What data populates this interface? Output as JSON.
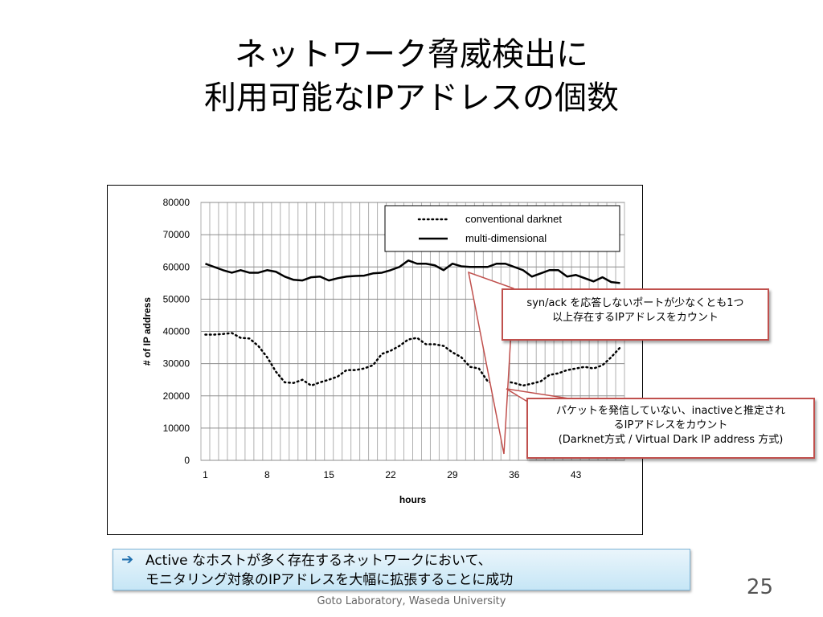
{
  "slide": {
    "title_line1": "ネットワーク脅威検出に",
    "title_line2": "利用可能なIPアドレスの個数",
    "callout_top": [
      "syn/ack を応答しないポートが少なくとも1つ",
      "以上存在するIPアドレスをカウント"
    ],
    "callout_bottom": [
      "パケットを発信していない、inactiveと推定され",
      "るIPアドレスをカウント",
      "(Darknet方式 / Virtual Dark IP address 方式)"
    ],
    "note": [
      "Active なホストが多く存在するネットワークにおいて、",
      "モニタリング対象のIPアドレスを大幅に拡張することに成功"
    ],
    "page_number": "25",
    "footer": "Goto Laboratory, Waseda University",
    "colors": {
      "callout_border": "#c0504d",
      "note_bg": "#c6e6f6",
      "arrow": "#1f6fae"
    }
  },
  "chart_data": {
    "type": "line",
    "xlabel": "hours",
    "ylabel": "# of IP address",
    "ylim": [
      0,
      80000
    ],
    "yticks": [
      0,
      10000,
      20000,
      30000,
      40000,
      50000,
      60000,
      70000,
      80000
    ],
    "xticks": [
      1,
      8,
      15,
      22,
      29,
      36,
      43
    ],
    "x": [
      1,
      2,
      3,
      4,
      5,
      6,
      7,
      8,
      9,
      10,
      11,
      12,
      13,
      14,
      15,
      16,
      17,
      18,
      19,
      20,
      21,
      22,
      23,
      24,
      25,
      26,
      27,
      28,
      29,
      30,
      31,
      32,
      33,
      34,
      35,
      36,
      37,
      38,
      39,
      40,
      41,
      42,
      43,
      44,
      45,
      46,
      47,
      48
    ],
    "grid": true,
    "legend_position": "top-right",
    "series": [
      {
        "name": "conventional darknet",
        "style": "dotted",
        "values": [
          39000,
          39000,
          39200,
          39500,
          38000,
          37800,
          35500,
          32000,
          27500,
          24200,
          24000,
          25000,
          23200,
          24200,
          25000,
          26000,
          28000,
          28000,
          28500,
          29500,
          33000,
          34000,
          35500,
          37500,
          38000,
          36000,
          36000,
          35500,
          33500,
          32000,
          29000,
          28500,
          24500,
          23500,
          24500,
          24000,
          23200,
          23800,
          24500,
          26500,
          27000,
          28000,
          28500,
          29000,
          28500,
          29500,
          32000,
          35000
        ]
      },
      {
        "name": "multi-dimensional",
        "style": "solid",
        "values": [
          61000,
          60000,
          59000,
          58200,
          59000,
          58200,
          58200,
          59000,
          58500,
          57000,
          56000,
          55800,
          56800,
          57000,
          55800,
          56500,
          57000,
          57200,
          57300,
          58000,
          58200,
          59000,
          60000,
          62000,
          61000,
          61000,
          60500,
          59000,
          61000,
          60200,
          60000,
          60000,
          60000,
          61000,
          61000,
          60000,
          59000,
          57000,
          58000,
          59000,
          59000,
          57000,
          57500,
          56500,
          55500,
          56800,
          55300,
          55000
        ]
      }
    ]
  }
}
